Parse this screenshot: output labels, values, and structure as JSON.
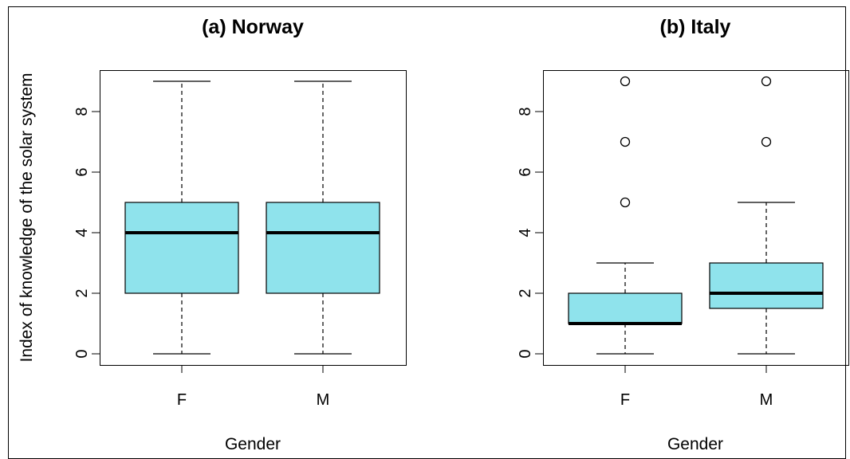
{
  "colors": {
    "box_fill": "#8fe3ec",
    "stroke": "#000000"
  },
  "chart_data": [
    {
      "type": "boxplot",
      "title": "(a) Norway",
      "xlabel": "Gender",
      "ylabel": "Index of knowledge of the solar system",
      "ylim": [
        0,
        9
      ],
      "y_ticks": [
        0,
        2,
        4,
        6,
        8
      ],
      "categories": [
        "F",
        "M"
      ],
      "boxes": [
        {
          "category": "F",
          "whisker_low": 0,
          "q1": 2,
          "median": 4,
          "q3": 5,
          "whisker_high": 9,
          "outliers": []
        },
        {
          "category": "M",
          "whisker_low": 0,
          "q1": 2,
          "median": 4,
          "q3": 5,
          "whisker_high": 9,
          "outliers": []
        }
      ]
    },
    {
      "type": "boxplot",
      "title": "(b) Italy",
      "xlabel": "Gender",
      "ylabel": "",
      "ylim": [
        0,
        9
      ],
      "y_ticks": [
        0,
        2,
        4,
        6,
        8
      ],
      "categories": [
        "F",
        "M"
      ],
      "boxes": [
        {
          "category": "F",
          "whisker_low": 0,
          "q1": 1,
          "median": 1,
          "q3": 2,
          "whisker_high": 3,
          "outliers": [
            5,
            7,
            9
          ]
        },
        {
          "category": "M",
          "whisker_low": 0,
          "q1": 1.5,
          "median": 2,
          "q3": 3,
          "whisker_high": 5,
          "outliers": [
            7,
            9
          ]
        }
      ]
    }
  ]
}
